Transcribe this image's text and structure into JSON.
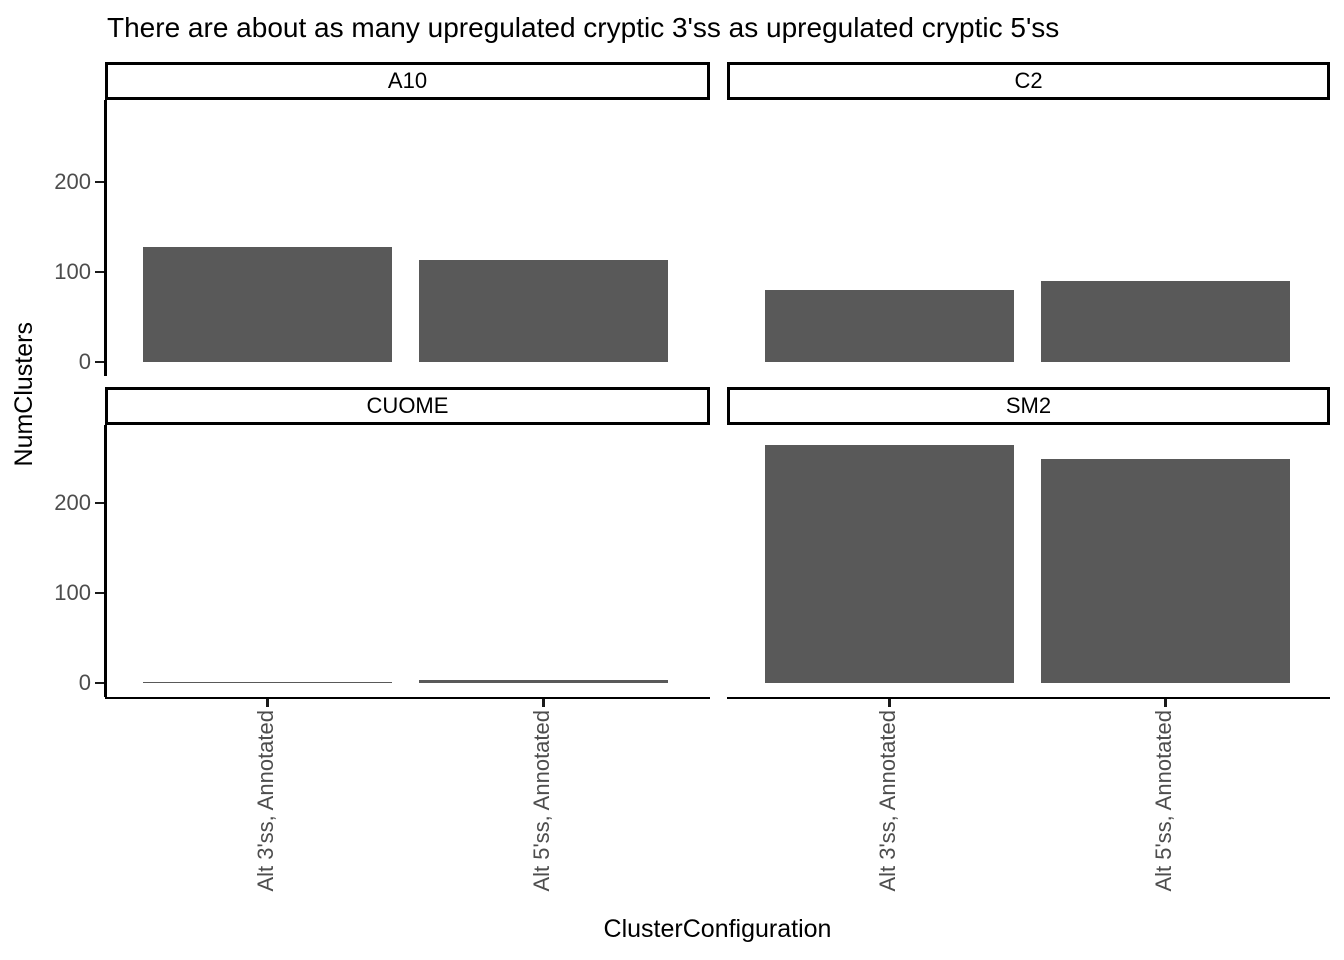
{
  "title": "There are about as many upregulated cryptic 3'ss as upregulated cryptic 5'ss",
  "axes": {
    "x_title": "ClusterConfiguration",
    "y_title": "NumClusters",
    "y_tick_labels": [
      "0",
      "100",
      "200"
    ]
  },
  "chart_data": {
    "type": "bar",
    "title": "There are about as many upregulated cryptic 3'ss as upregulated cryptic 5'ss",
    "xlabel": "ClusterConfiguration",
    "ylabel": "NumClusters",
    "categories": [
      "Alt 3'ss, Annotated",
      "Alt 5'ss, Annotated"
    ],
    "facets": [
      {
        "name": "A10",
        "values": [
          128,
          113
        ]
      },
      {
        "name": "C2",
        "values": [
          80,
          90
        ]
      },
      {
        "name": "CUOME",
        "values": [
          1,
          3
        ]
      },
      {
        "name": "SM2",
        "values": [
          264,
          249
        ]
      }
    ],
    "y_ticks": [
      0,
      100,
      200
    ],
    "ylim": [
      0,
      280
    ],
    "grid": false,
    "legend": "none",
    "bar_color": "#595959",
    "axis_text_color": "#4d4d4d",
    "axis_line_color": "#000000",
    "background": "#ffffff"
  }
}
